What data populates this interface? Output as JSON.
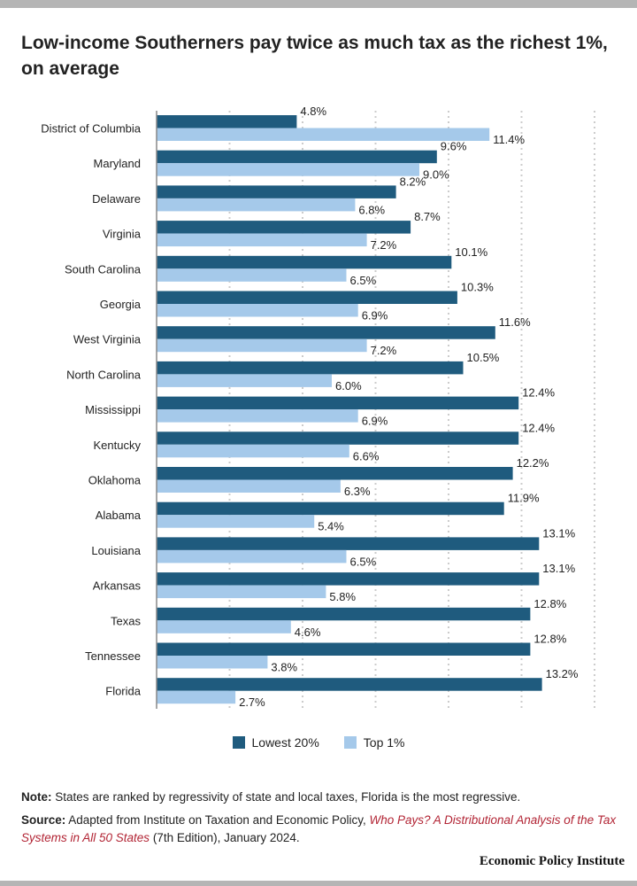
{
  "title": "Low-income Southerners pay twice as much tax as the richest 1%, on average",
  "colors": {
    "lowest": "#1f5b7e",
    "top": "#a5c9ea",
    "grid": "#cccccc",
    "axis": "#888888"
  },
  "legend": {
    "lowest_label": "Lowest 20%",
    "top_label": "Top 1%"
  },
  "note": {
    "label": "Note:",
    "text": " States are ranked by regressivity of state and local taxes, Florida is the most regressive."
  },
  "source": {
    "label": "Source:",
    "text_before": " Adapted from Institute on Taxation and Economic Policy, ",
    "link_text": "Who Pays? A Distributional Analysis of the Tax Systems in All 50 States",
    "text_after": " (7th Edition), January 2024."
  },
  "brand": "Economic Policy Institute",
  "chart_data": {
    "type": "bar",
    "orientation": "horizontal",
    "title": "Low-income Southerners pay twice as much tax as the richest 1%, on average",
    "xlabel": "",
    "ylabel": "",
    "xlim": [
      0,
      15
    ],
    "grid": true,
    "legend_position": "bottom",
    "categories": [
      "District of Columbia",
      "Maryland",
      "Delaware",
      "Virginia",
      "South Carolina",
      "Georgia",
      "West Virginia",
      "North Carolina",
      "Mississippi",
      "Kentucky",
      "Oklahoma",
      "Alabama",
      "Louisiana",
      "Arkansas",
      "Texas",
      "Tennessee",
      "Florida"
    ],
    "series": [
      {
        "name": "Lowest 20%",
        "values": [
          4.8,
          9.6,
          8.2,
          8.7,
          10.1,
          10.3,
          11.6,
          10.5,
          12.4,
          12.4,
          12.2,
          11.9,
          13.1,
          13.1,
          12.8,
          12.8,
          13.2
        ],
        "labels": [
          "4.8%",
          "9.6%",
          "8.2%",
          "8.7%",
          "10.1%",
          "10.3%",
          "11.6%",
          "10.5%",
          "12.4%",
          "12.4%",
          "12.2%",
          "11.9%",
          "13.1%",
          "13.1%",
          "12.8%",
          "12.8%",
          "13.2%"
        ]
      },
      {
        "name": "Top 1%",
        "values": [
          11.4,
          9.0,
          6.8,
          7.2,
          6.5,
          6.9,
          7.2,
          6.0,
          6.9,
          6.6,
          6.3,
          5.4,
          6.5,
          5.8,
          4.6,
          3.8,
          2.7
        ],
        "labels": [
          "11.4%",
          "9.0%",
          "6.8%",
          "7.2%",
          "6.5%",
          "6.9%",
          "7.2%",
          "6.0%",
          "6.9%",
          "6.6%",
          "6.3%",
          "5.4%",
          "6.5%",
          "5.8%",
          "4.6%",
          "3.8%",
          "2.7%"
        ]
      }
    ]
  }
}
